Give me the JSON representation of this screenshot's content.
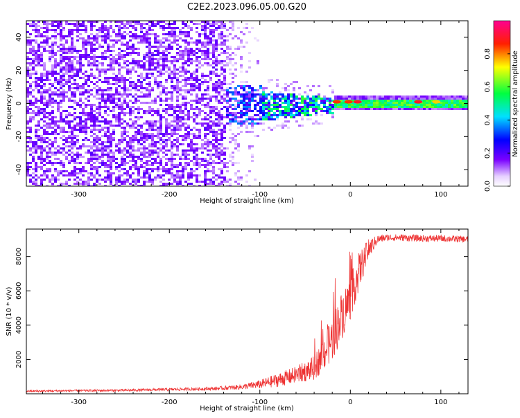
{
  "chart_data": [
    {
      "type": "heatmap",
      "title": "C2E2.2023.096.05.00.G20",
      "xlabel": "Height of straight line (km)",
      "ylabel": "Frequency (Hz)",
      "xlim": [
        -358,
        130
      ],
      "ylim": [
        -50,
        50
      ],
      "xticks": [
        -300,
        -200,
        -100,
        0,
        100
      ],
      "yticks": [
        -40,
        -20,
        0,
        20,
        40
      ],
      "colorbar": {
        "label": "Normalized spectral amplitude",
        "range": [
          0,
          1
        ],
        "ticks": [
          "0.0",
          "0.2",
          "0.4",
          "0.6",
          "0.8"
        ],
        "colormap": "white-purple-blue-cyan-green-yellow-red-magenta"
      },
      "regions": [
        {
          "description_x": [
            -358,
            -140
          ],
          "frequency_spread_hz": [
            -50,
            50
          ],
          "amplitude": 0.1
        },
        {
          "description_x": [
            -140,
            -100
          ],
          "frequency_spread_hz": [
            -50,
            50
          ],
          "amplitude": 0.05
        },
        {
          "description_x": [
            -140,
            -20
          ],
          "frequency_spread_hz": [
            -12,
            8
          ],
          "amplitude": 0.45
        },
        {
          "description_x": [
            -20,
            130
          ],
          "frequency_spread_hz": [
            -3,
            3
          ],
          "amplitude": 0.6
        }
      ],
      "bright_spots": [
        {
          "x": -15,
          "y": 1,
          "amplitude": 0.85
        },
        {
          "x": -2,
          "y": 1,
          "amplitude": 0.85
        },
        {
          "x": 8,
          "y": 1,
          "amplitude": 0.9
        },
        {
          "x": 75,
          "y": 1,
          "amplitude": 0.9
        },
        {
          "x": 95,
          "y": 1,
          "amplitude": 0.75
        }
      ]
    },
    {
      "type": "line",
      "title": "",
      "xlabel": "Height of straight line (km)",
      "ylabel": "SNR (10 * v/v)",
      "xlim": [
        -358,
        130
      ],
      "ylim": [
        0,
        9600
      ],
      "xticks": [
        -300,
        -200,
        -100,
        0,
        100
      ],
      "yticks": [
        2000,
        4000,
        6000,
        8000
      ],
      "color": "#ee3333",
      "series": [
        {
          "x": [
            -358,
            -300,
            -250,
            -200,
            -150,
            -120,
            -100,
            -80,
            -60,
            -40,
            -30,
            -20,
            -10,
            0,
            10,
            20,
            30,
            40,
            60,
            80,
            100,
            130
          ],
          "y": [
            150,
            180,
            200,
            250,
            300,
            400,
            550,
            800,
            1100,
            1500,
            2300,
            3200,
            4500,
            5600,
            7200,
            8400,
            9000,
            9100,
            9100,
            9050,
            9050,
            9000
          ],
          "noise": [
            60,
            60,
            70,
            80,
            100,
            150,
            250,
            400,
            500,
            700,
            1000,
            1300,
            1400,
            1300,
            1100,
            600,
            250,
            200,
            200,
            200,
            200,
            200
          ]
        }
      ]
    }
  ]
}
